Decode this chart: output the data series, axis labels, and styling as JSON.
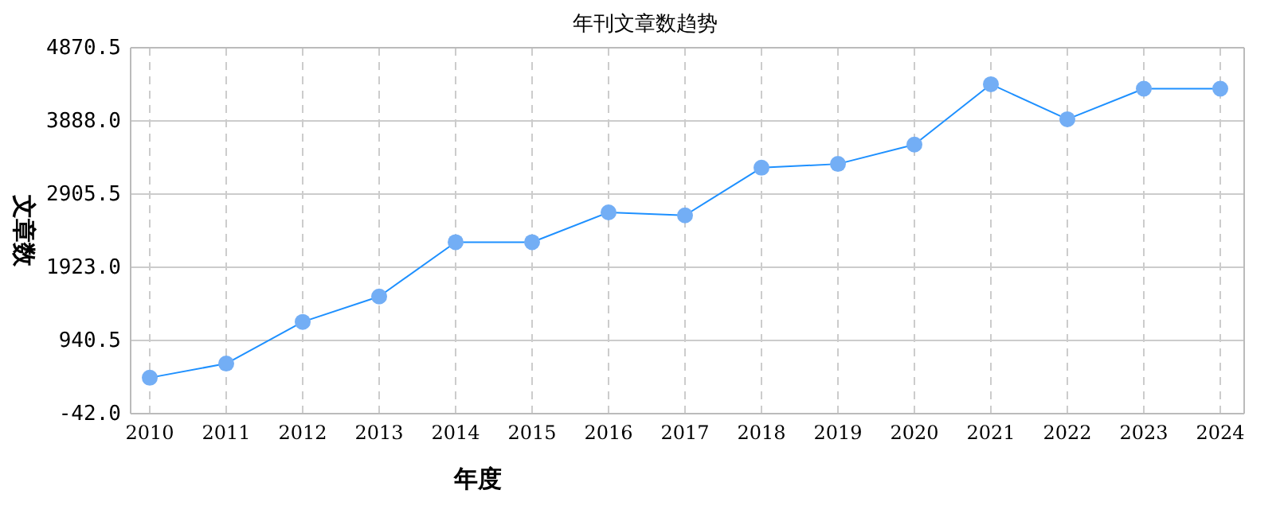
{
  "chart_data": {
    "type": "line",
    "title": "年刊文章数趋势",
    "xlabel": "年度",
    "ylabel": "文章数",
    "categories": [
      "2010",
      "2011",
      "2012",
      "2013",
      "2014",
      "2015",
      "2016",
      "2017",
      "2018",
      "2019",
      "2020",
      "2021",
      "2022",
      "2023",
      "2024"
    ],
    "series": [
      {
        "color": "#1e90ff",
        "values": [
          440,
          630,
          1190,
          1530,
          2260,
          2260,
          2660,
          2620,
          3260,
          3310,
          3570,
          4380,
          3910,
          4320,
          4320
        ]
      }
    ],
    "ylim": [
      -42,
      4870.5
    ],
    "yticks": [
      {
        "value": -42,
        "label": "-42.0"
      },
      {
        "value": 940.5,
        "label": "940.5"
      },
      {
        "value": 1923,
        "label": "1923.0"
      },
      {
        "value": 2905.5,
        "label": "2905.5"
      },
      {
        "value": 3888,
        "label": "3888.0"
      },
      {
        "value": 4870.5,
        "label": "4870.5"
      }
    ],
    "grid": true,
    "marker": "circle",
    "line_style": "solid"
  }
}
